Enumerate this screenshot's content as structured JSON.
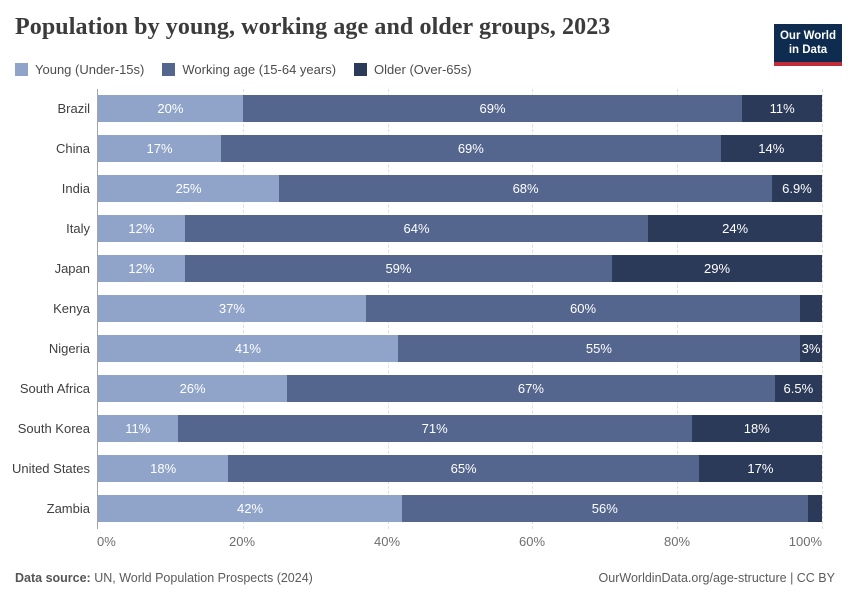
{
  "header": {
    "title": "Population by young, working age and older groups, 2023",
    "logo": {
      "line1": "Our World",
      "line2": "in Data",
      "bg_color": "#0d2c4f",
      "accent_color": "#c02d39"
    }
  },
  "legend": {
    "items": [
      {
        "label": "Young (Under-15s)",
        "color": "#90a4ca"
      },
      {
        "label": "Working age (15-64 years)",
        "color": "#54668e"
      },
      {
        "label": "Older (Over-65s)",
        "color": "#2b3a58"
      }
    ]
  },
  "chart_data": {
    "type": "bar",
    "orientation": "horizontal",
    "stacked": true,
    "title": "Population by young, working age and older groups, 2023",
    "categories": [
      "Brazil",
      "China",
      "India",
      "Italy",
      "Japan",
      "Kenya",
      "Nigeria",
      "South Africa",
      "South Korea",
      "United States",
      "Zambia"
    ],
    "series": [
      {
        "name": "Young (Under-15s)",
        "color": "#90a4ca",
        "values": [
          20,
          17,
          25,
          12,
          12,
          37,
          41,
          26,
          11,
          18,
          42
        ],
        "labels": [
          "20%",
          "17%",
          "25%",
          "12%",
          "12%",
          "37%",
          "41%",
          "26%",
          "11%",
          "18%",
          "42%"
        ]
      },
      {
        "name": "Working age (15-64 years)",
        "color": "#54668e",
        "values": [
          69,
          69,
          68,
          64,
          59,
          60,
          55,
          67,
          71,
          65,
          56
        ],
        "labels": [
          "69%",
          "69%",
          "68%",
          "64%",
          "59%",
          "60%",
          "55%",
          "67%",
          "71%",
          "65%",
          "56%"
        ]
      },
      {
        "name": "Older (Over-65s)",
        "color": "#2b3a58",
        "values": [
          11,
          14,
          6.9,
          24,
          29,
          3,
          3,
          6.5,
          18,
          17,
          2
        ],
        "labels": [
          "11%",
          "14%",
          "6.9%",
          "24%",
          "29%",
          "",
          "3%",
          "6.5%",
          "18%",
          "17%",
          ""
        ]
      }
    ],
    "x_ticks": [
      "0%",
      "20%",
      "40%",
      "60%",
      "80%",
      "100%"
    ],
    "xlim": [
      0,
      100
    ],
    "grid": "dashed-vertical",
    "legend_position": "top"
  },
  "footer": {
    "source_label": "Data source:",
    "source_value": " UN, World Population Prospects (2024)",
    "link": "OurWorldinData.org/age-structure | CC BY"
  }
}
